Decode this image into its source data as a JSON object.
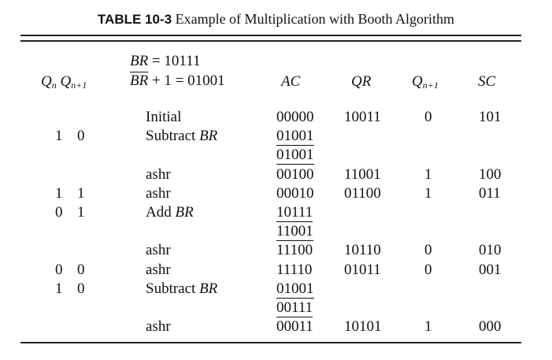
{
  "caption": {
    "label": "TABLE 10-3",
    "text": "Example of Multiplication with Booth Algorithm"
  },
  "header": {
    "br_line": "BR = 10111",
    "brbar_line_a": "BR",
    "brbar_line_b": " + 1 = 01001",
    "qn": "Q",
    "qn_sub": "n",
    "qn1": "Q",
    "qn1_sub": "n+1",
    "ac": "AC",
    "qr": "QR",
    "qnplus1": "Q",
    "qnplus1_sub": "n+1",
    "sc": "SC"
  },
  "rows": [
    {
      "qn": "",
      "qn1": "",
      "op": "Initial",
      "ac": "00000",
      "qr": "10011",
      "q": "0",
      "sc": "101"
    },
    {
      "qn": "1",
      "qn1": "0",
      "op": "Subtract",
      "op_i": "BR",
      "ac": "01001",
      "ac_ul": true,
      "qr": "",
      "q": "",
      "sc": ""
    },
    {
      "qn": "",
      "qn1": "",
      "op": "",
      "ac": "01001",
      "qr": "",
      "q": "",
      "sc": ""
    },
    {
      "qn": "",
      "qn1": "",
      "op": "ashr",
      "ac": "00100",
      "qr": "11001",
      "q": "1",
      "sc": "100"
    },
    {
      "qn": "1",
      "qn1": "1",
      "op": "ashr",
      "ac": "00010",
      "qr": "01100",
      "q": "1",
      "sc": "011"
    },
    {
      "qn": "0",
      "qn1": "1",
      "op": "Add",
      "op_i": "BR",
      "ac": "10111",
      "ac_ul": true,
      "qr": "",
      "q": "",
      "sc": ""
    },
    {
      "qn": "",
      "qn1": "",
      "op": "",
      "ac": "11001",
      "qr": "",
      "q": "",
      "sc": ""
    },
    {
      "qn": "",
      "qn1": "",
      "op": "ashr",
      "ac": "11100",
      "qr": "10110",
      "q": "0",
      "sc": "010"
    },
    {
      "qn": "0",
      "qn1": "0",
      "op": "ashr",
      "ac": "11110",
      "qr": "01011",
      "q": "0",
      "sc": "001"
    },
    {
      "qn": "1",
      "qn1": "0",
      "op": "Subtract",
      "op_i": "BR",
      "ac": "01001",
      "ac_ul": true,
      "qr": "",
      "q": "",
      "sc": ""
    },
    {
      "qn": "",
      "qn1": "",
      "op": "",
      "ac": "00111",
      "qr": "",
      "q": "",
      "sc": ""
    },
    {
      "qn": "",
      "qn1": "",
      "op": "ashr",
      "ac": "00011",
      "qr": "10101",
      "q": "1",
      "sc": "000"
    }
  ]
}
